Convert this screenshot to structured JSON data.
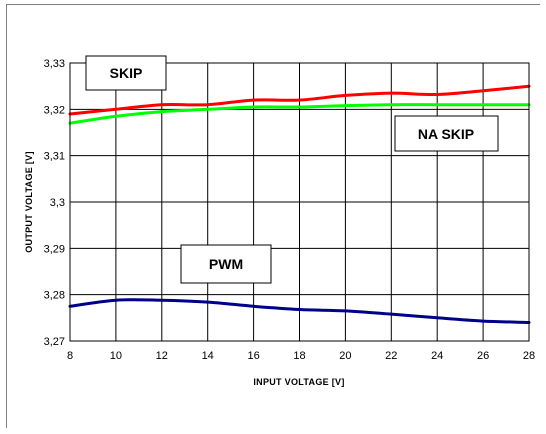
{
  "chart_data": {
    "type": "line",
    "title": "",
    "xlabel": "INPUT VOLTAGE [V]",
    "ylabel": "OUTPUT VOLTAGE [V]",
    "xlim": [
      8,
      28
    ],
    "ylim": [
      3.27,
      3.33
    ],
    "x_ticks": [
      8,
      10,
      12,
      14,
      16,
      18,
      20,
      22,
      24,
      26,
      28
    ],
    "y_ticks": [
      3.27,
      3.28,
      3.29,
      3.3,
      3.31,
      3.32,
      3.33
    ],
    "x_tick_labels": [
      "8",
      "10",
      "12",
      "14",
      "16",
      "18",
      "20",
      "22",
      "24",
      "26",
      "28"
    ],
    "y_tick_labels": [
      "3,27",
      "3,28",
      "3,29",
      "3,3",
      "3,31",
      "3,32",
      "3,33"
    ],
    "grid": true,
    "legend": "none",
    "series": [
      {
        "name": "SKIP",
        "color": "#ff0000",
        "x": [
          8,
          10,
          12,
          14,
          16,
          18,
          20,
          22,
          24,
          26,
          28
        ],
        "y": [
          3.319,
          3.32,
          3.321,
          3.321,
          3.322,
          3.322,
          3.323,
          3.3235,
          3.3232,
          3.324,
          3.325
        ]
      },
      {
        "name": "NA SKIP",
        "color": "#00ff00",
        "x": [
          8,
          10,
          12,
          14,
          16,
          18,
          20,
          22,
          24,
          26,
          28
        ],
        "y": [
          3.317,
          3.3185,
          3.3195,
          3.32,
          3.3205,
          3.3205,
          3.3208,
          3.321,
          3.321,
          3.321,
          3.321
        ]
      },
      {
        "name": "PWM",
        "color": "#00008b",
        "x": [
          8,
          10,
          12,
          14,
          16,
          18,
          20,
          22,
          24,
          26,
          28
        ],
        "y": [
          3.2775,
          3.2788,
          3.2788,
          3.2784,
          3.2775,
          3.2768,
          3.2765,
          3.2758,
          3.275,
          3.2743,
          3.274
        ]
      }
    ],
    "annotations": [
      {
        "text": "SKIP",
        "series": "SKIP"
      },
      {
        "text": "NA SKIP",
        "series": "NA SKIP"
      },
      {
        "text": "PWM",
        "series": "PWM"
      }
    ]
  }
}
